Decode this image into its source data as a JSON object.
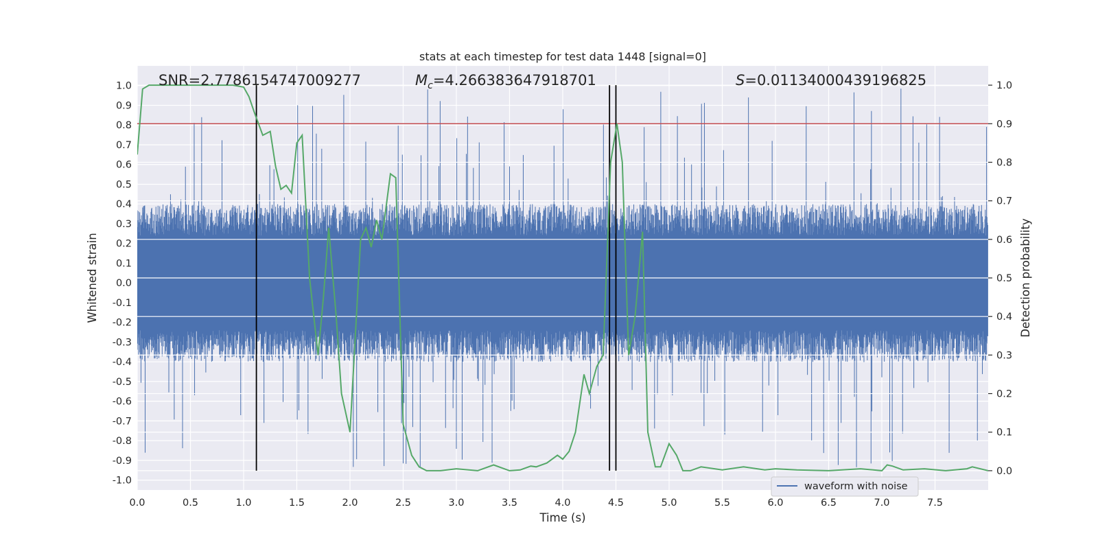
{
  "chart_data": {
    "type": "line",
    "title": "stats at each timestep for test data 1448 [signal=0]",
    "xlabel": "Time (s)",
    "ylabel": "Whitened strain",
    "y2label": "Detection probability",
    "xlim": [
      0,
      8
    ],
    "ylim": [
      -1.05,
      1.1
    ],
    "y2lim": [
      -0.05,
      1.05
    ],
    "x_ticks": [
      0.0,
      0.5,
      1.0,
      1.5,
      2.0,
      2.5,
      3.0,
      3.5,
      4.0,
      4.5,
      5.0,
      5.5,
      6.0,
      6.5,
      7.0,
      7.5
    ],
    "x_tick_labels": [
      "0.0",
      "0.5",
      "1.0",
      "1.5",
      "2.0",
      "2.5",
      "3.0",
      "3.5",
      "4.0",
      "4.5",
      "5.0",
      "5.5",
      "6.0",
      "6.5",
      "7.0",
      "7.5"
    ],
    "y_ticks": [
      1.0,
      0.9,
      0.8,
      0.7,
      0.6,
      0.5,
      0.4,
      0.3,
      0.2,
      0.1,
      0.0,
      -0.1,
      -0.2,
      -0.3,
      -0.4,
      -0.5,
      -0.6,
      -0.7,
      -0.8,
      -0.9,
      -1.0
    ],
    "y_tick_labels": [
      "1.0",
      "0.9",
      "0.8",
      "0.7",
      "0.6",
      "0.5",
      "0.4",
      "0.3",
      "0.2",
      "0.1",
      "0.0",
      "-0.1",
      "-0.2",
      "-0.3",
      "-0.4",
      "-0.5",
      "-0.6",
      "-0.7",
      "-0.8",
      "-0.9",
      "-1.0"
    ],
    "y2_ticks": [
      1.0,
      0.9,
      0.8,
      0.7,
      0.6,
      0.5,
      0.4,
      0.3,
      0.2,
      0.1,
      0.0
    ],
    "y2_tick_labels": [
      "1.0",
      "0.9",
      "0.8",
      "0.7",
      "0.6",
      "0.5",
      "0.4",
      "0.3",
      "0.2",
      "0.1",
      "0.0"
    ],
    "annotations": {
      "snr": "SNR=2.7786154747009277",
      "mc_symbol": "M",
      "mc_sub": "c",
      "mc_value": "=4.266383647918701",
      "s_symbol": "S",
      "s_value": "=0.01134000439196825"
    },
    "threshold": {
      "value": 0.9,
      "axis": "right",
      "color": "#c44e52"
    },
    "vertical_markers": [
      1.12,
      4.44,
      4.5
    ],
    "legend": {
      "position": "lower-right",
      "entries": [
        "waveform with noise"
      ]
    },
    "waveform": {
      "name": "waveform with noise",
      "color": "#4c72b0",
      "baseline_amplitude": 0.4,
      "spike_max": 1.0,
      "spike_min": -0.95,
      "samples": 2048,
      "note": "dense noise signal; drawn procedurally"
    },
    "probability": {
      "name": "detection probability",
      "color": "#55a868",
      "x": [
        0.0,
        0.05,
        0.11,
        0.16,
        0.21,
        0.3,
        0.5,
        0.7,
        0.9,
        1.0,
        1.05,
        1.1,
        1.18,
        1.25,
        1.3,
        1.35,
        1.4,
        1.45,
        1.5,
        1.55,
        1.62,
        1.7,
        1.75,
        1.8,
        1.87,
        1.92,
        2.0,
        2.05,
        2.1,
        2.15,
        2.2,
        2.25,
        2.3,
        2.38,
        2.43,
        2.5,
        2.58,
        2.65,
        2.72,
        2.78,
        2.85,
        3.0,
        3.2,
        3.35,
        3.5,
        3.6,
        3.7,
        3.75,
        3.85,
        3.95,
        4.0,
        4.06,
        4.12,
        4.2,
        4.25,
        4.32,
        4.38,
        4.45,
        4.51,
        4.56,
        4.62,
        4.68,
        4.75,
        4.8,
        4.87,
        4.92,
        5.0,
        5.07,
        5.13,
        5.2,
        5.3,
        5.5,
        5.7,
        5.9,
        6.0,
        6.2,
        6.5,
        6.8,
        7.0,
        7.05,
        7.1,
        7.2,
        7.4,
        7.6,
        7.8,
        7.85,
        8.0
      ],
      "y": [
        0.82,
        0.99,
        1.0,
        1.0,
        1.0,
        1.0,
        1.0,
        1.0,
        1.0,
        0.995,
        0.97,
        0.93,
        0.87,
        0.88,
        0.79,
        0.73,
        0.74,
        0.72,
        0.85,
        0.87,
        0.5,
        0.3,
        0.45,
        0.63,
        0.4,
        0.2,
        0.1,
        0.35,
        0.6,
        0.63,
        0.58,
        0.65,
        0.6,
        0.77,
        0.76,
        0.12,
        0.04,
        0.01,
        0.0,
        0.0,
        0.0,
        0.005,
        0.0,
        0.015,
        0.0,
        0.002,
        0.012,
        0.01,
        0.02,
        0.04,
        0.03,
        0.05,
        0.1,
        0.25,
        0.2,
        0.27,
        0.3,
        0.8,
        0.9,
        0.8,
        0.3,
        0.4,
        0.62,
        0.1,
        0.01,
        0.01,
        0.07,
        0.04,
        0.0,
        0.0,
        0.01,
        0.002,
        0.01,
        0.002,
        0.005,
        0.002,
        0.0,
        0.005,
        0.0,
        0.015,
        0.012,
        0.002,
        0.005,
        0.0,
        0.005,
        0.01,
        0.0
      ]
    }
  }
}
